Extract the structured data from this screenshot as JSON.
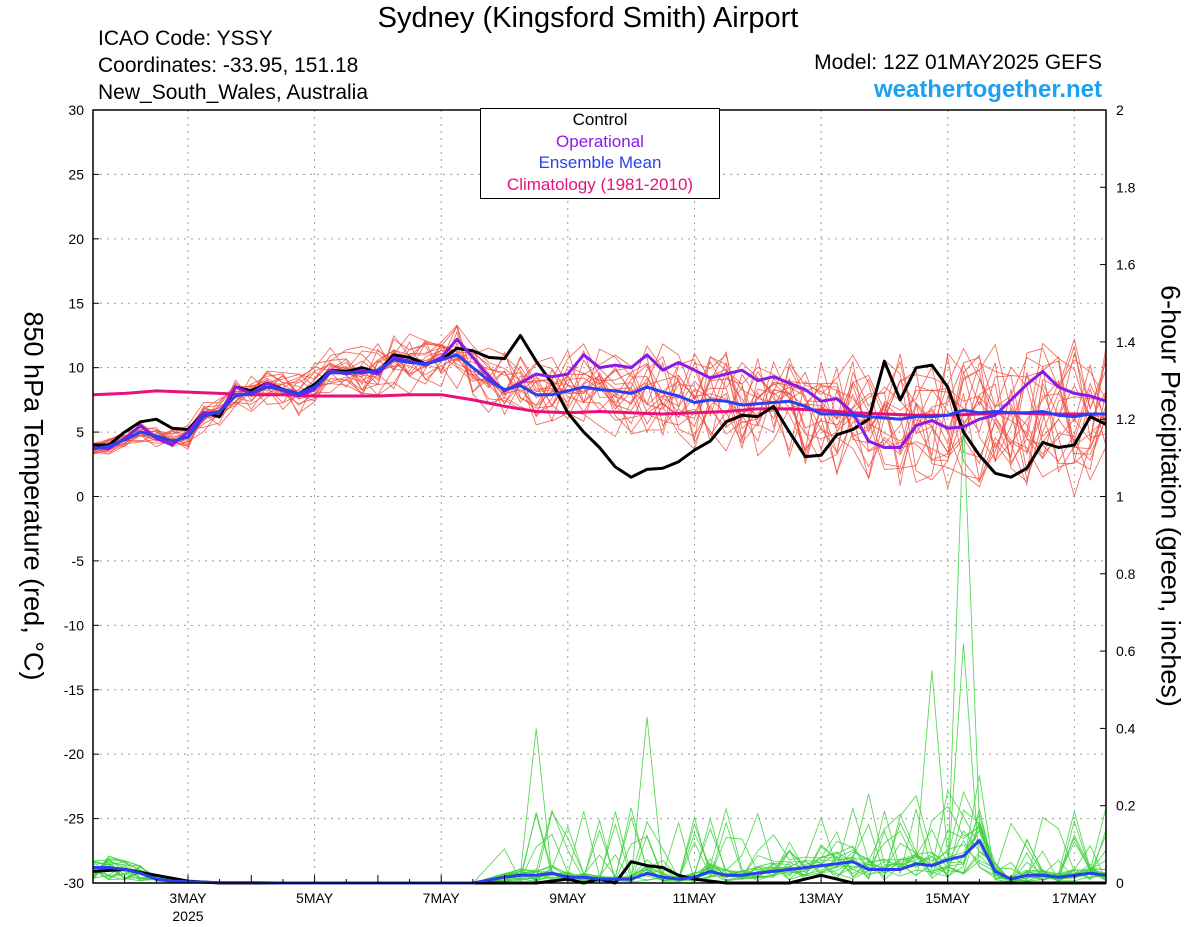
{
  "header": {
    "title": "Sydney (Kingsford Smith) Airport",
    "icao": "ICAO Code: YSSY",
    "coordinates": "Coordinates: -33.95, 151.18",
    "region": "New_South_Wales, Australia",
    "model": "Model: 12Z 01MAY2025 GEFS",
    "site": "weathertogether.net"
  },
  "chart_data": {
    "type": "line",
    "xlabel": "",
    "ylabel": "850 hPa Temperature (red, °C)",
    "y2label": "6-hour Precipitation (green, inches)",
    "xlim": [
      1.5,
      17.5
    ],
    "ylim": [
      -30,
      30
    ],
    "y2lim": [
      0,
      2
    ],
    "grid": true,
    "legend_position": "top-center",
    "x_ticks": [
      {
        "x": 3,
        "label": "3MAY"
      },
      {
        "x": 5,
        "label": "5MAY"
      },
      {
        "x": 7,
        "label": "7MAY"
      },
      {
        "x": 9,
        "label": "9MAY"
      },
      {
        "x": 11,
        "label": "11MAY"
      },
      {
        "x": 13,
        "label": "13MAY"
      },
      {
        "x": 15,
        "label": "15MAY"
      },
      {
        "x": 17,
        "label": "17MAY"
      }
    ],
    "year_label": "2025",
    "y_ticks": [
      30,
      25,
      20,
      15,
      10,
      5,
      0,
      -5,
      -10,
      -15,
      -20,
      -25,
      -30
    ],
    "y2_ticks": [
      "2",
      "1.8",
      "1.6",
      "1.4",
      "1.2",
      "1",
      "0.8",
      "0.6",
      "0.4",
      "0.2",
      "0"
    ],
    "legend": [
      {
        "label": "Control",
        "color": "#000000"
      },
      {
        "label": "Operational",
        "color": "#8a1ae6"
      },
      {
        "label": "Ensemble Mean",
        "color": "#2a3ff0"
      },
      {
        "label": "Climatology (1981-2010)",
        "color": "#e8107c"
      }
    ],
    "colors": {
      "ensemble_temp": "#f04b3c",
      "ensemble_precip": "#3cd23c"
    },
    "series": [
      {
        "name": "Control",
        "axis": "temperature",
        "color": "#000000",
        "x": [
          1.5,
          1.75,
          2.0,
          2.25,
          2.5,
          2.75,
          3.0,
          3.25,
          3.5,
          3.75,
          4.0,
          4.25,
          4.5,
          4.75,
          5.0,
          5.25,
          5.5,
          5.75,
          6.0,
          6.25,
          6.5,
          6.75,
          7.0,
          7.25,
          7.5,
          7.75,
          8.0,
          8.25,
          8.5,
          8.75,
          9.0,
          9.25,
          9.5,
          9.75,
          10.0,
          10.25,
          10.5,
          10.75,
          11.0,
          11.25,
          11.5,
          11.75,
          12.0,
          12.25,
          12.5,
          12.75,
          13.0,
          13.25,
          13.5,
          13.75,
          14.0,
          14.25,
          14.5,
          14.75,
          15.0,
          15.25,
          15.5,
          15.75,
          16.0,
          16.25,
          16.5,
          16.75,
          17.0,
          17.25,
          17.5
        ],
        "y": [
          4.0,
          4.0,
          5.0,
          5.8,
          6.0,
          5.3,
          5.2,
          6.5,
          6.2,
          8.5,
          8.2,
          8.8,
          8.3,
          8.0,
          8.7,
          9.8,
          9.7,
          10.0,
          9.6,
          11.0,
          10.8,
          10.3,
          10.6,
          11.5,
          11.3,
          10.8,
          10.7,
          12.5,
          10.5,
          8.8,
          6.5,
          5.0,
          3.8,
          2.3,
          1.5,
          2.1,
          2.2,
          2.7,
          3.6,
          4.3,
          5.8,
          6.3,
          6.2,
          7.0,
          5.0,
          3.1,
          3.2,
          4.8,
          5.2,
          6.0,
          10.5,
          7.5,
          10.0,
          10.2,
          8.5,
          5.0,
          3.2,
          1.8,
          1.5,
          2.2,
          4.2,
          3.8,
          4.0,
          6.2,
          5.6
        ]
      },
      {
        "name": "Operational",
        "axis": "temperature",
        "color": "#8a1ae6",
        "x": [
          1.5,
          1.75,
          2.0,
          2.25,
          2.5,
          2.75,
          3.0,
          3.25,
          3.5,
          3.75,
          4.0,
          4.25,
          4.5,
          4.75,
          5.0,
          5.25,
          5.5,
          5.75,
          6.0,
          6.25,
          6.5,
          6.75,
          7.0,
          7.25,
          7.5,
          7.75,
          8.0,
          8.25,
          8.5,
          8.75,
          9.0,
          9.25,
          9.5,
          9.75,
          10.0,
          10.25,
          10.5,
          10.75,
          11.0,
          11.25,
          11.5,
          11.75,
          12.0,
          12.25,
          12.5,
          12.75,
          13.0,
          13.25,
          13.5,
          13.75,
          14.0,
          14.25,
          14.5,
          14.75,
          15.0,
          15.25,
          15.5,
          15.75,
          16.0,
          16.25,
          16.5,
          16.75,
          17.0,
          17.25,
          17.5
        ],
        "y": [
          3.8,
          3.7,
          4.5,
          5.5,
          4.5,
          4.0,
          5.0,
          6.5,
          6.5,
          8.5,
          8.0,
          8.8,
          8.2,
          7.8,
          8.3,
          9.8,
          9.5,
          9.8,
          9.5,
          10.8,
          10.5,
          10.2,
          10.8,
          12.2,
          10.8,
          9.3,
          8.2,
          8.8,
          9.5,
          9.3,
          9.5,
          11.0,
          10.0,
          10.2,
          10.0,
          11.0,
          9.8,
          10.4,
          9.8,
          9.2,
          9.5,
          9.8,
          9.0,
          9.3,
          8.8,
          8.3,
          7.4,
          7.6,
          6.5,
          4.3,
          3.8,
          3.8,
          5.5,
          5.9,
          5.3,
          5.4,
          6.0,
          6.3,
          7.5,
          8.7,
          9.7,
          8.5,
          8.0,
          7.8,
          7.4
        ]
      },
      {
        "name": "Ensemble Mean",
        "axis": "temperature",
        "color": "#2a3ff0",
        "x": [
          1.5,
          1.75,
          2.0,
          2.25,
          2.5,
          2.75,
          3.0,
          3.25,
          3.5,
          3.75,
          4.0,
          4.25,
          4.5,
          4.75,
          5.0,
          5.25,
          5.5,
          5.75,
          6.0,
          6.25,
          6.5,
          6.75,
          7.0,
          7.25,
          7.5,
          7.75,
          8.0,
          8.25,
          8.5,
          8.75,
          9.0,
          9.25,
          9.5,
          9.75,
          10.0,
          10.25,
          10.5,
          10.75,
          11.0,
          11.25,
          11.5,
          11.75,
          12.0,
          12.25,
          12.5,
          12.75,
          13.0,
          13.25,
          13.5,
          13.75,
          14.0,
          14.25,
          14.5,
          14.75,
          15.0,
          15.25,
          15.5,
          15.75,
          16.0,
          16.25,
          16.5,
          16.75,
          17.0,
          17.25,
          17.5
        ],
        "y": [
          3.7,
          3.9,
          4.4,
          5.0,
          4.7,
          4.3,
          4.6,
          6.2,
          6.6,
          7.8,
          8.0,
          8.5,
          8.3,
          8.0,
          8.5,
          9.6,
          9.6,
          9.6,
          9.8,
          10.6,
          10.4,
          10.3,
          10.6,
          11.0,
          10.0,
          9.0,
          8.3,
          8.6,
          7.9,
          7.9,
          8.2,
          8.5,
          8.3,
          8.2,
          8.0,
          8.5,
          8.1,
          7.8,
          7.3,
          7.5,
          7.4,
          7.1,
          7.2,
          7.3,
          7.4,
          7.0,
          6.4,
          6.4,
          6.3,
          6.2,
          6.1,
          6.0,
          6.2,
          6.2,
          6.3,
          6.7,
          6.5,
          6.6,
          6.5,
          6.5,
          6.6,
          6.3,
          6.2,
          6.4,
          6.4
        ]
      },
      {
        "name": "Climatology (1981-2010)",
        "axis": "temperature",
        "color": "#e8107c",
        "x": [
          1.5,
          2.0,
          2.5,
          3.0,
          3.5,
          4.0,
          4.5,
          5.0,
          5.5,
          6.0,
          6.5,
          7.0,
          7.5,
          8.0,
          8.5,
          9.0,
          9.5,
          10.0,
          10.5,
          11.0,
          11.5,
          12.0,
          12.5,
          13.0,
          13.5,
          14.0,
          14.5,
          15.0,
          15.5,
          16.0,
          16.5,
          17.0,
          17.5
        ],
        "y": [
          7.9,
          8.0,
          8.2,
          8.1,
          8.0,
          7.9,
          7.9,
          7.8,
          7.8,
          7.8,
          7.9,
          7.9,
          7.5,
          7.0,
          6.6,
          6.5,
          6.6,
          6.5,
          6.4,
          6.5,
          6.6,
          6.8,
          6.8,
          6.7,
          6.5,
          6.4,
          6.3,
          6.3,
          6.4,
          6.5,
          6.4,
          6.4,
          6.4
        ]
      },
      {
        "name": "Control",
        "axis": "precipitation",
        "color": "#000000",
        "x": [
          1.5,
          2.0,
          2.5,
          3.0,
          3.5,
          4.0,
          5.0,
          6.0,
          7.0,
          8.0,
          8.5,
          9.0,
          9.25,
          9.5,
          9.75,
          10.0,
          10.25,
          10.5,
          10.75,
          11.0,
          11.5,
          12.0,
          12.5,
          12.75,
          13.0,
          13.25,
          13.5,
          14.0,
          14.5,
          15.0,
          15.5,
          16.0,
          16.5,
          17.0,
          17.5
        ],
        "y": [
          0.03,
          0.035,
          0.02,
          0.005,
          0,
          0,
          0,
          0,
          0,
          0,
          0,
          0.01,
          0,
          0.01,
          0,
          0.055,
          0.045,
          0.04,
          0.02,
          0.01,
          0,
          0,
          0,
          0.01,
          0.02,
          0.01,
          0,
          0,
          0,
          0,
          0,
          0,
          0,
          0,
          0
        ]
      },
      {
        "name": "Ensemble Mean",
        "axis": "precipitation",
        "color": "#2a3ff0",
        "x": [
          1.5,
          1.75,
          2.0,
          2.25,
          2.5,
          2.75,
          3.0,
          3.5,
          4.0,
          4.5,
          5.0,
          6.0,
          7.0,
          7.5,
          8.0,
          8.25,
          8.5,
          8.75,
          9.0,
          9.25,
          9.5,
          9.75,
          10.0,
          10.25,
          10.5,
          10.75,
          11.0,
          11.25,
          11.5,
          11.75,
          12.0,
          12.25,
          12.5,
          12.75,
          13.0,
          13.25,
          13.5,
          13.75,
          14.0,
          14.25,
          14.5,
          14.75,
          15.0,
          15.25,
          15.5,
          15.75,
          16.0,
          16.25,
          16.5,
          16.75,
          17.0,
          17.25,
          17.5
        ],
        "y": [
          0.04,
          0.04,
          0.035,
          0.025,
          0.01,
          0.005,
          0.003,
          0.001,
          0.001,
          0,
          0,
          0,
          0,
          0,
          0.015,
          0.02,
          0.02,
          0.025,
          0.015,
          0.015,
          0.01,
          0.01,
          0.01,
          0.025,
          0.015,
          0.01,
          0.015,
          0.03,
          0.02,
          0.02,
          0.025,
          0.03,
          0.035,
          0.04,
          0.045,
          0.05,
          0.055,
          0.035,
          0.035,
          0.035,
          0.05,
          0.045,
          0.06,
          0.07,
          0.11,
          0.03,
          0.01,
          0.02,
          0.02,
          0.015,
          0.02,
          0.025,
          0.02
        ]
      }
    ]
  }
}
